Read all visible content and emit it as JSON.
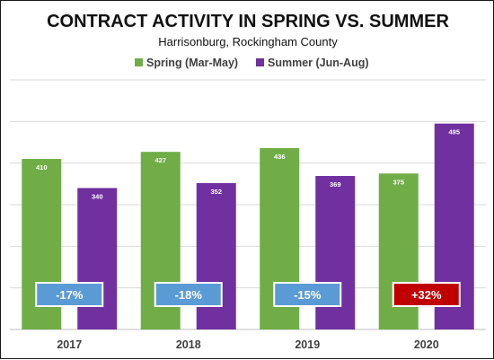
{
  "chart_data": {
    "type": "bar",
    "title": "CONTRACT ACTIVITY IN SPRING VS. SUMMER",
    "subtitle": "Harrisonburg, Rockingham County",
    "categories": [
      "2017",
      "2018",
      "2019",
      "2020"
    ],
    "series": [
      {
        "name": "Spring (Mar-May)",
        "color": "#70ad47",
        "values": [
          410,
          427,
          436,
          375
        ]
      },
      {
        "name": "Summer (Jun-Aug)",
        "color": "#7030a0",
        "values": [
          340,
          352,
          369,
          495
        ]
      }
    ],
    "annotations": [
      {
        "category": "2017",
        "label": "-17%",
        "color": "#5b9bd5"
      },
      {
        "category": "2018",
        "label": "-18%",
        "color": "#5b9bd5"
      },
      {
        "category": "2019",
        "label": "-15%",
        "color": "#5b9bd5"
      },
      {
        "category": "2020",
        "label": "+32%",
        "color": "#c00000"
      }
    ],
    "ylim": [
      0,
      600
    ],
    "yaxis_labels_shown": false,
    "grid": true,
    "legend_position": "top-center",
    "data_labels": true
  }
}
